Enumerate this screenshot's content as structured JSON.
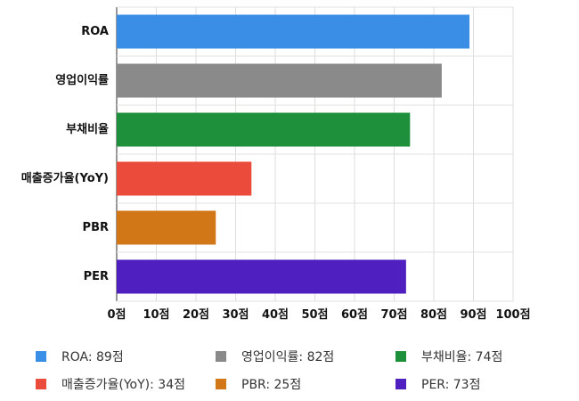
{
  "chart_data": {
    "type": "bar",
    "orientation": "horizontal",
    "categories": [
      "ROA",
      "영업이익률",
      "부채비율",
      "매출증가율(YoY)",
      "PBR",
      "PER"
    ],
    "values": [
      89,
      82,
      74,
      34,
      25,
      73
    ],
    "colors": [
      "#3a8ee6",
      "#8a8a8a",
      "#1e8f3b",
      "#ea4b3b",
      "#d17718",
      "#4f1fc0"
    ],
    "xlim": [
      0,
      100
    ],
    "xticks": [
      0,
      10,
      20,
      30,
      40,
      50,
      60,
      70,
      80,
      90,
      100
    ],
    "tick_unit": "점",
    "grid": true,
    "legend": {
      "placement": "bottom",
      "entries": [
        {
          "label": "ROA: 89점",
          "color": "#3a8ee6"
        },
        {
          "label": "영업이익률: 82점",
          "color": "#8a8a8a"
        },
        {
          "label": "부채비율: 74점",
          "color": "#1e8f3b"
        },
        {
          "label": "매출증가율(YoY): 34점",
          "color": "#ea4b3b"
        },
        {
          "label": "PBR: 25점",
          "color": "#d17718"
        },
        {
          "label": "PER: 73점",
          "color": "#4f1fc0"
        }
      ]
    }
  }
}
